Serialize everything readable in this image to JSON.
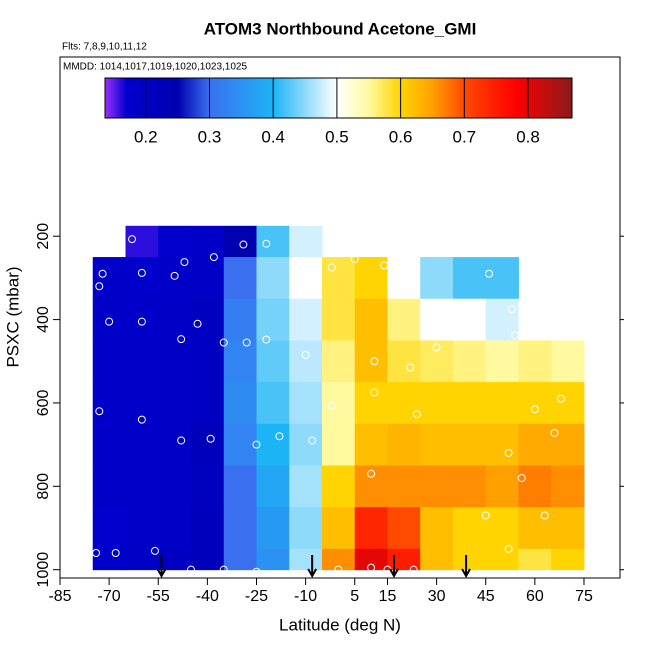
{
  "chart_data": {
    "type": "heatmap",
    "title": "ATOM3 Northbound Acetone_GMI",
    "subtitle": "Flts: 7,8,9,10,11,12",
    "annotation": "MMDD: 1014,1017,1019,1020,1023,1025",
    "xlabel": "Latitude (deg N)",
    "ylabel": "PSXC (mbar)",
    "xlim": [
      -85,
      86
    ],
    "ylim": [
      1020,
      -230
    ],
    "xticks": [
      -85,
      -70,
      -55,
      -40,
      -25,
      -10,
      5,
      15,
      30,
      45,
      60,
      75
    ],
    "yticks": [
      200,
      400,
      600,
      800,
      1000
    ],
    "x_bins": [
      -75,
      -65,
      -55,
      -45,
      -35,
      -25,
      -15,
      -5,
      5,
      15,
      25,
      35,
      45,
      55,
      65,
      75
    ],
    "y_bins": [
      175,
      250,
      350,
      450,
      550,
      650,
      750,
      850,
      950,
      1000
    ],
    "z": [
      [
        null,
        0.16,
        0.17,
        0.18,
        0.25,
        0.42,
        0.48,
        null,
        null,
        null,
        null,
        null,
        null,
        null,
        null
      ],
      [
        0.18,
        0.17,
        0.18,
        0.19,
        0.3,
        0.45,
        0.5,
        0.58,
        0.6,
        0.5,
        0.45,
        0.42,
        0.42,
        null,
        null
      ],
      [
        0.18,
        0.18,
        0.19,
        0.2,
        0.32,
        0.44,
        0.48,
        0.58,
        0.62,
        0.56,
        0.5,
        0.5,
        0.48,
        0.5,
        0.5
      ],
      [
        0.18,
        0.18,
        0.19,
        0.2,
        0.33,
        0.43,
        0.47,
        0.56,
        0.62,
        0.58,
        0.57,
        0.56,
        0.55,
        0.56,
        0.55
      ],
      [
        0.18,
        0.18,
        0.19,
        0.2,
        0.34,
        0.42,
        0.46,
        0.55,
        0.6,
        0.6,
        0.6,
        0.6,
        0.6,
        0.6,
        0.6
      ],
      [
        0.18,
        0.18,
        0.19,
        0.22,
        0.33,
        0.4,
        0.45,
        0.55,
        0.62,
        0.63,
        0.62,
        0.62,
        0.62,
        0.64,
        0.64
      ],
      [
        0.18,
        0.18,
        0.19,
        0.21,
        0.3,
        0.38,
        0.46,
        0.6,
        0.66,
        0.66,
        0.66,
        0.66,
        0.65,
        0.67,
        0.66
      ],
      [
        0.17,
        0.18,
        0.19,
        0.22,
        0.3,
        0.36,
        0.45,
        0.62,
        0.74,
        0.7,
        0.62,
        0.6,
        0.6,
        0.62,
        0.62
      ],
      [
        0.18,
        0.19,
        0.2,
        0.22,
        0.3,
        0.35,
        0.46,
        0.66,
        0.8,
        0.75,
        0.62,
        0.6,
        0.6,
        0.58,
        0.6
      ]
    ],
    "clim": [
      0.136,
      0.869
    ],
    "cticks": [
      0.2,
      0.3,
      0.4,
      0.5,
      0.6,
      0.7,
      0.8
    ],
    "colorscale": [
      [
        0.136,
        "#9b30ff"
      ],
      [
        0.17,
        "#0000cd"
      ],
      [
        0.25,
        "#0000b0"
      ],
      [
        0.3,
        "#3a70f0"
      ],
      [
        0.4,
        "#1cb4f5"
      ],
      [
        0.5,
        "#ffffff"
      ],
      [
        0.55,
        "#fffaa0"
      ],
      [
        0.6,
        "#ffd400"
      ],
      [
        0.65,
        "#ffa000"
      ],
      [
        0.7,
        "#ff4a00"
      ],
      [
        0.78,
        "#ff0000"
      ],
      [
        0.869,
        "#8b1a1a"
      ]
    ],
    "points": {
      "x": [
        -73,
        -63,
        -72,
        -60,
        -50,
        -47,
        -38,
        -29,
        -22,
        -73,
        -70,
        -60,
        -43,
        -48,
        -35,
        -28,
        -22,
        -10,
        -2,
        5,
        14,
        22,
        46,
        53,
        63,
        70,
        72,
        11,
        22,
        30,
        43,
        54,
        63,
        65,
        -73,
        -60,
        -48,
        -39,
        -25,
        -18,
        -8,
        -2,
        11,
        24,
        60,
        66,
        68,
        52,
        56,
        10,
        45,
        63,
        -74,
        -68,
        -56,
        -35,
        -45,
        -25,
        0,
        10,
        15,
        23,
        52
      ],
      "y": [
        240,
        207,
        290,
        288,
        295,
        262,
        250,
        220,
        218,
        320,
        405,
        405,
        410,
        447,
        455,
        455,
        448,
        485,
        275,
        255,
        270,
        268,
        290,
        375,
        355,
        320,
        400,
        500,
        515,
        467,
        440,
        438,
        427,
        385,
        620,
        640,
        690,
        686,
        700,
        680,
        690,
        607,
        575,
        627,
        615,
        672,
        590,
        720,
        780,
        770,
        870,
        870,
        960,
        960,
        955,
        1000,
        1000,
        1005,
        1000,
        995,
        1000,
        1000,
        950
      ]
    },
    "arrows": [
      -54,
      -8,
      17,
      39
    ]
  }
}
